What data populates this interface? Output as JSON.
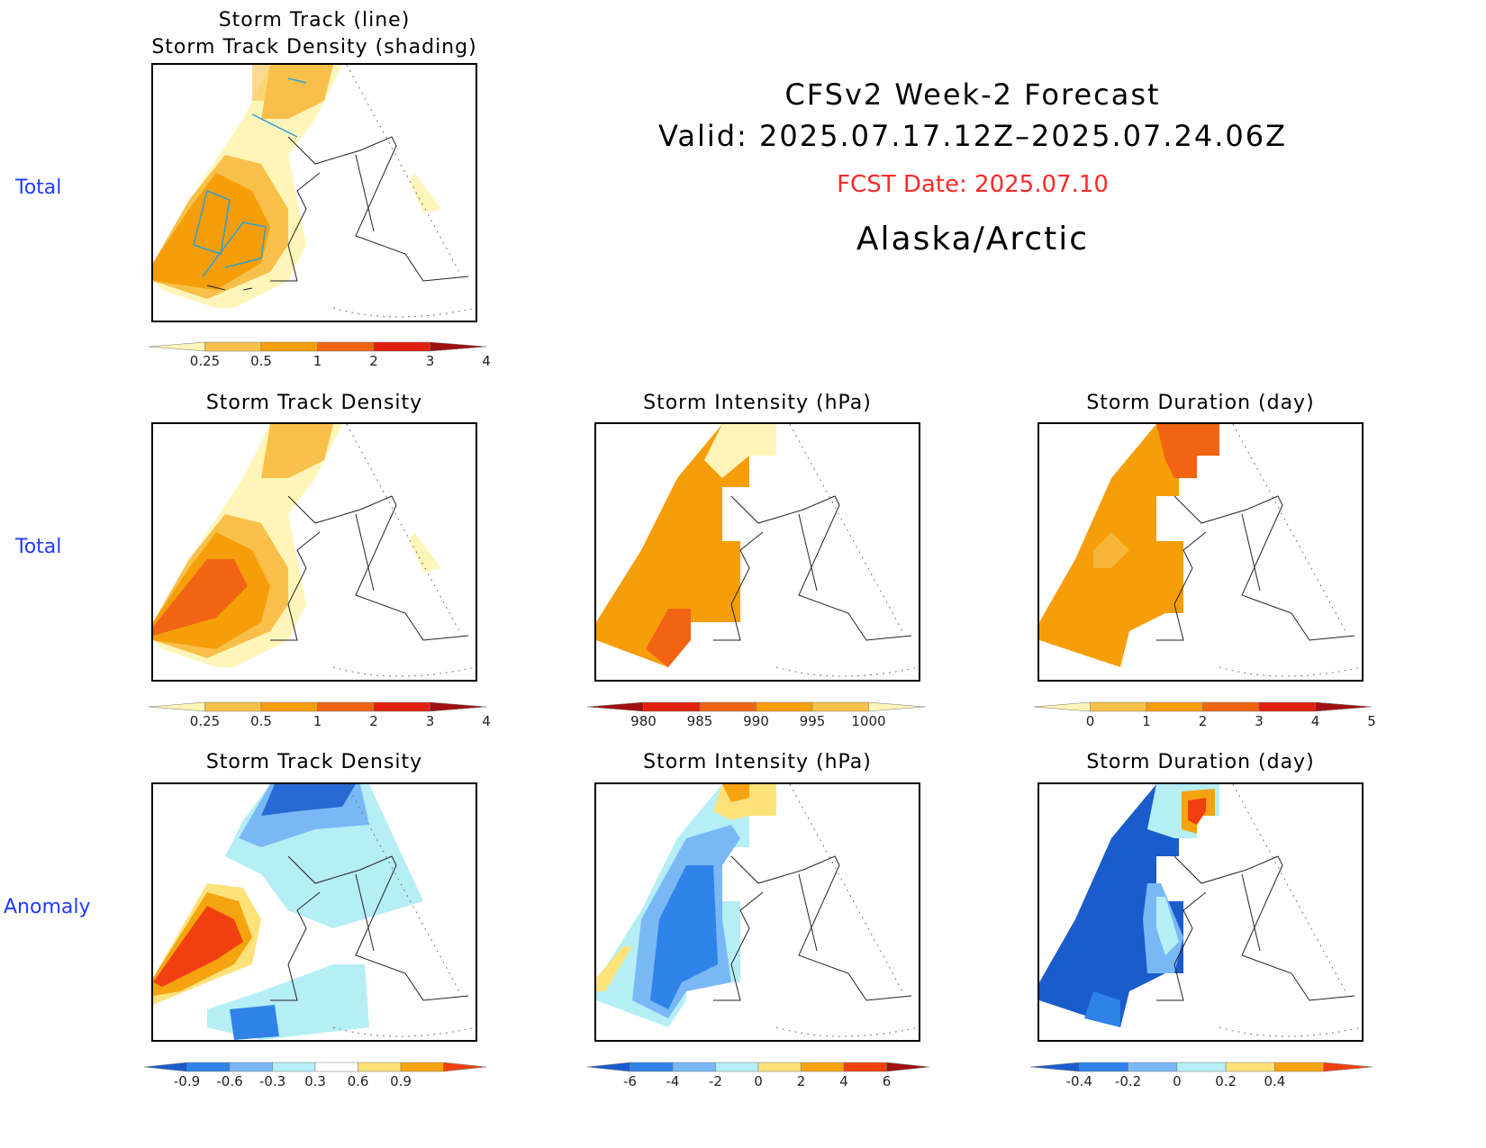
{
  "header": {
    "line1": "CFSv2 Week-2 Forecast",
    "line2": "Valid: 2025.07.17.12Z–2025.07.24.06Z",
    "fcst_date": "FCST Date: 2025.07.10",
    "region": "Alaska/Arctic"
  },
  "rows": {
    "row1": "Total",
    "row2": "Total",
    "row3": "Anomaly"
  },
  "panels": {
    "p1": {
      "title": "Storm Track (line)\nStorm Track Density (shading)"
    },
    "p2": {
      "title": "Storm Track Density"
    },
    "p3": {
      "title": "Storm Intensity (hPa)"
    },
    "p4": {
      "title": "Storm Duration (day)"
    },
    "p5": {
      "title": "Storm Track Density"
    },
    "p6": {
      "title": "Storm Intensity (hPa)"
    },
    "p7": {
      "title": "Storm Duration (day)"
    }
  },
  "colorbars": {
    "density": {
      "ticks": [
        "0.25",
        "0.5",
        "1",
        "2",
        "3",
        "4"
      ],
      "colors": [
        "#fff5b8",
        "#f8c04a",
        "#f59e0a",
        "#f06414",
        "#e02010",
        "#a01010"
      ]
    },
    "intensity": {
      "ticks": [
        "980",
        "985",
        "990",
        "995",
        "1000"
      ],
      "colors": [
        "#a01010",
        "#e02010",
        "#f06414",
        "#f59e0a",
        "#f8c04a",
        "#fff5b8"
      ]
    },
    "duration": {
      "ticks": [
        "0",
        "1",
        "2",
        "3",
        "4",
        "5"
      ],
      "colors": [
        "#fff5b8",
        "#f8c04a",
        "#f59e0a",
        "#f06414",
        "#e02010",
        "#a01010"
      ]
    },
    "density_anom": {
      "ticks": [
        "-0.9",
        "-0.6",
        "-0.3",
        "0.3",
        "0.6",
        "0.9"
      ],
      "colors": [
        "#1a5ccc",
        "#2f82e8",
        "#7ab8f5",
        "#b5eef5",
        "#ffffff",
        "#fde27a",
        "#f5a410",
        "#f04010"
      ]
    },
    "intensity_anom": {
      "ticks": [
        "-6",
        "-4",
        "-2",
        "0",
        "2",
        "4",
        "6"
      ],
      "colors": [
        "#1a5ccc",
        "#2f82e8",
        "#7ab8f5",
        "#b5eef5",
        "#fde27a",
        "#f5a410",
        "#f04010",
        "#a01010"
      ]
    },
    "duration_anom": {
      "ticks": [
        "-0.4",
        "-0.2",
        "0",
        "0.2",
        "0.4"
      ],
      "colors": [
        "#1a5ccc",
        "#2f82e8",
        "#7ab8f5",
        "#b5eef5",
        "#fde27a",
        "#f5a410",
        "#f04010"
      ]
    }
  }
}
